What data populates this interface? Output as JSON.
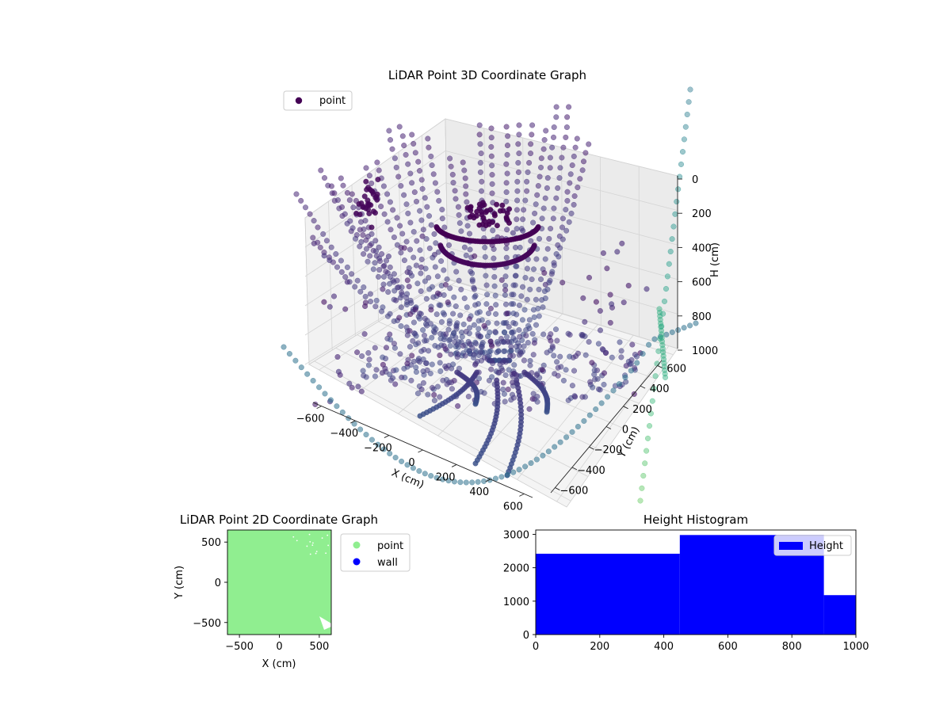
{
  "chart_data": [
    {
      "type": "scatter3d",
      "title": "LiDAR Point 3D Coordinate Graph",
      "xlabel": "X (cm)",
      "ylabel": "Y (cm)",
      "zlabel": "H (cm)",
      "x_ticks": [
        -600,
        -400,
        -200,
        0,
        200,
        400,
        600
      ],
      "y_ticks": [
        -600,
        -400,
        -200,
        0,
        200,
        400,
        600
      ],
      "z_ticks": [
        0,
        200,
        400,
        600,
        800,
        1000
      ],
      "xlim": [
        -650,
        650
      ],
      "ylim": [
        -650,
        650
      ],
      "zlim": [
        0,
        1000
      ],
      "z_inverted": true,
      "legend": [
        "point"
      ],
      "legend_placement": "upper-left",
      "colormap": "viridis",
      "grid": true
    },
    {
      "type": "scatter",
      "title": "LiDAR Point 2D Coordinate Graph",
      "xlabel": "X (cm)",
      "ylabel": "Y (cm)",
      "x_ticks": [
        -500,
        0,
        500
      ],
      "y_ticks": [
        -500,
        0,
        500
      ],
      "xlim": [
        -650,
        650
      ],
      "ylim": [
        -650,
        650
      ],
      "series": [
        {
          "name": "point",
          "color": "#90ee90"
        },
        {
          "name": "wall",
          "color": "#0000ff"
        }
      ],
      "legend_placement": "outside-right"
    },
    {
      "type": "bar",
      "title": "Height Histogram",
      "series": [
        {
          "name": "Height",
          "color": "#0000ff"
        }
      ],
      "bins": [
        {
          "x0": 0,
          "x1": 450,
          "count": 2420
        },
        {
          "x0": 450,
          "x1": 900,
          "count": 2980
        },
        {
          "x0": 900,
          "x1": 1000,
          "count": 1180
        }
      ],
      "x_ticks": [
        0,
        200,
        400,
        600,
        800,
        1000
      ],
      "y_ticks": [
        0,
        1000,
        2000,
        3000
      ],
      "xlim": [
        0,
        1000
      ],
      "ylim": [
        0,
        3130
      ],
      "legend_placement": "upper-right"
    }
  ]
}
